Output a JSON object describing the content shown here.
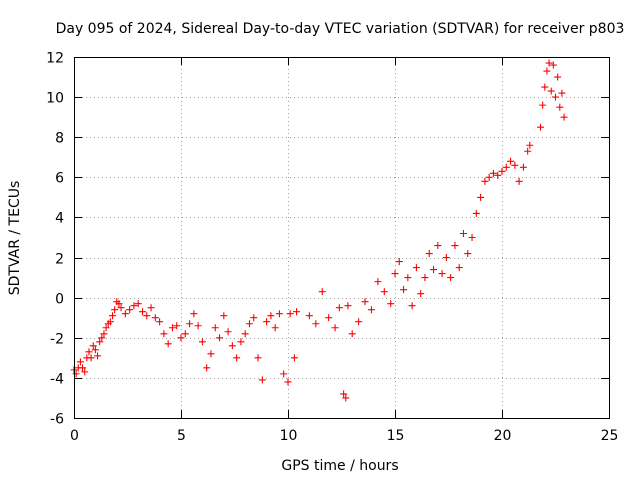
{
  "chart_data": {
    "type": "scatter",
    "title": "Day 095 of 2024, Sidereal Day-to-day VTEC variation (SDTVAR) for receiver p803",
    "xlabel": "GPS time / hours",
    "ylabel": "SDTVAR / TECUs",
    "xlim": [
      0,
      25
    ],
    "ylim": [
      -6,
      12
    ],
    "xticks": [
      0,
      5,
      10,
      15,
      20,
      25
    ],
    "yticks": [
      -6,
      -4,
      -2,
      0,
      2,
      4,
      6,
      8,
      10,
      12
    ],
    "grid": true,
    "marker": "+",
    "series_color": "#ff0000",
    "series": [
      {
        "name": "SDTVAR",
        "points": [
          [
            0.0,
            -3.6
          ],
          [
            0.1,
            -3.8
          ],
          [
            0.2,
            -3.5
          ],
          [
            0.3,
            -3.2
          ],
          [
            0.4,
            -3.5
          ],
          [
            0.5,
            -3.7
          ],
          [
            0.6,
            -3.0
          ],
          [
            0.7,
            -2.7
          ],
          [
            0.8,
            -3.0
          ],
          [
            0.9,
            -2.4
          ],
          [
            1.0,
            -2.6
          ],
          [
            1.1,
            -2.9
          ],
          [
            1.2,
            -2.2
          ],
          [
            1.3,
            -2.0
          ],
          [
            1.4,
            -1.8
          ],
          [
            1.5,
            -1.5
          ],
          [
            1.6,
            -1.3
          ],
          [
            1.7,
            -1.2
          ],
          [
            1.8,
            -0.9
          ],
          [
            1.9,
            -0.6
          ],
          [
            2.0,
            -0.2
          ],
          [
            2.1,
            -0.3
          ],
          [
            2.2,
            -0.5
          ],
          [
            2.4,
            -0.8
          ],
          [
            2.6,
            -0.6
          ],
          [
            2.8,
            -0.4
          ],
          [
            3.0,
            -0.3
          ],
          [
            3.2,
            -0.7
          ],
          [
            3.4,
            -0.9
          ],
          [
            3.6,
            -0.5
          ],
          [
            3.8,
            -1.0
          ],
          [
            4.0,
            -1.2
          ],
          [
            4.2,
            -1.8
          ],
          [
            4.4,
            -2.3
          ],
          [
            4.6,
            -1.5
          ],
          [
            4.8,
            -1.4
          ],
          [
            5.0,
            -2.0
          ],
          [
            5.2,
            -1.8
          ],
          [
            5.4,
            -1.3
          ],
          [
            5.6,
            -0.8
          ],
          [
            5.8,
            -1.4
          ],
          [
            6.0,
            -2.2
          ],
          [
            6.2,
            -3.5
          ],
          [
            6.4,
            -2.8
          ],
          [
            6.6,
            -1.5
          ],
          [
            6.8,
            -2.0
          ],
          [
            7.0,
            -0.9
          ],
          [
            7.2,
            -1.7
          ],
          [
            7.4,
            -2.4
          ],
          [
            7.6,
            -3.0
          ],
          [
            7.8,
            -2.2
          ],
          [
            8.0,
            -1.8
          ],
          [
            8.2,
            -1.3
          ],
          [
            8.4,
            -1.0
          ],
          [
            8.6,
            -3.0
          ],
          [
            8.8,
            -4.1
          ],
          [
            9.0,
            -1.2
          ],
          [
            9.2,
            -0.9
          ],
          [
            9.4,
            -1.5
          ],
          [
            9.6,
            -0.8
          ],
          [
            9.8,
            -3.8
          ],
          [
            10.0,
            -4.2
          ],
          [
            10.1,
            -0.8
          ],
          [
            10.3,
            -3.0
          ],
          [
            10.4,
            -0.7
          ],
          [
            11.0,
            -0.9
          ],
          [
            11.3,
            -1.3
          ],
          [
            11.6,
            0.3
          ],
          [
            11.9,
            -1.0
          ],
          [
            12.2,
            -1.5
          ],
          [
            12.4,
            -0.5
          ],
          [
            12.6,
            -4.8
          ],
          [
            12.7,
            -5.0
          ],
          [
            12.8,
            -0.4
          ],
          [
            13.0,
            -1.8
          ],
          [
            13.3,
            -1.2
          ],
          [
            13.6,
            -0.2
          ],
          [
            13.9,
            -0.6
          ],
          [
            14.2,
            0.8
          ],
          [
            14.5,
            0.3
          ],
          [
            14.8,
            -0.3
          ],
          [
            15.0,
            1.2
          ],
          [
            15.2,
            1.8
          ],
          [
            15.4,
            0.4
          ],
          [
            15.6,
            1.0
          ],
          [
            15.8,
            -0.4
          ],
          [
            16.0,
            1.5
          ],
          [
            16.2,
            0.2
          ],
          [
            16.4,
            1.0
          ],
          [
            16.6,
            2.2
          ],
          [
            16.8,
            1.4
          ],
          [
            17.0,
            2.6
          ],
          [
            17.2,
            1.2
          ],
          [
            17.4,
            2.0
          ],
          [
            17.6,
            1.0
          ],
          [
            17.8,
            2.6
          ],
          [
            18.0,
            1.5
          ],
          [
            18.2,
            3.2
          ],
          [
            18.4,
            2.2
          ],
          [
            18.6,
            3.0
          ],
          [
            18.8,
            4.2
          ],
          [
            19.0,
            5.0
          ],
          [
            19.2,
            5.8
          ],
          [
            19.4,
            6.0
          ],
          [
            19.6,
            6.2
          ],
          [
            19.8,
            6.1
          ],
          [
            20.0,
            6.3
          ],
          [
            20.2,
            6.5
          ],
          [
            20.4,
            6.8
          ],
          [
            20.6,
            6.6
          ],
          [
            20.8,
            5.8
          ],
          [
            21.0,
            6.5
          ],
          [
            21.2,
            7.3
          ],
          [
            21.3,
            7.6
          ],
          [
            21.8,
            8.5
          ],
          [
            21.9,
            9.6
          ],
          [
            22.0,
            10.5
          ],
          [
            22.1,
            11.3
          ],
          [
            22.2,
            11.7
          ],
          [
            22.3,
            10.3
          ],
          [
            22.4,
            11.6
          ],
          [
            22.5,
            10.0
          ],
          [
            22.6,
            11.0
          ],
          [
            22.7,
            9.5
          ],
          [
            22.8,
            10.2
          ],
          [
            22.9,
            9.0
          ]
        ]
      }
    ]
  }
}
